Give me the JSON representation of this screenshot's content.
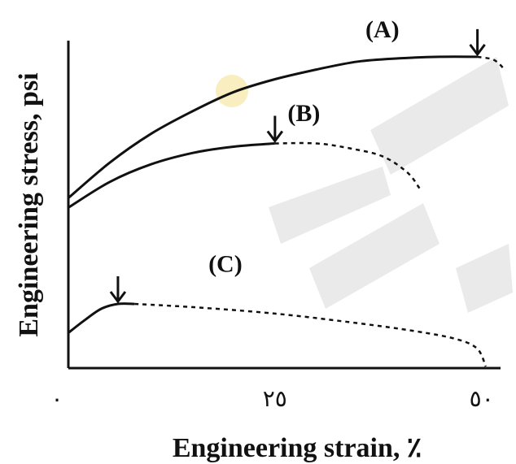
{
  "chart_data": {
    "type": "line",
    "xlabel": "Engineering strain, ٪",
    "ylabel": "Engineering stress,  psi",
    "xlim": [
      0,
      52
    ],
    "ylim": [
      0,
      100
    ],
    "x_ticks": [
      {
        "value": 0,
        "label": "٠"
      },
      {
        "value": 25,
        "label": "٢٥"
      },
      {
        "value": 50,
        "label": "٥٠"
      }
    ],
    "grid": false,
    "series": [
      {
        "name": "(A)",
        "solid": [
          [
            0,
            53
          ],
          [
            5,
            64
          ],
          [
            10,
            73
          ],
          [
            15,
            80
          ],
          [
            20,
            86
          ],
          [
            25,
            90
          ],
          [
            30,
            93
          ],
          [
            35,
            95.5
          ],
          [
            40,
            96.5
          ],
          [
            45,
            97
          ],
          [
            49.5,
            97
          ]
        ],
        "dashed": [
          [
            49.5,
            97
          ],
          [
            51.5,
            96
          ],
          [
            52.8,
            93
          ]
        ],
        "necking_point": [
          49.5,
          97
        ]
      },
      {
        "name": "(B)",
        "solid": [
          [
            0,
            50
          ],
          [
            5,
            58
          ],
          [
            10,
            63.5
          ],
          [
            15,
            67
          ],
          [
            20,
            69
          ],
          [
            25,
            70
          ]
        ],
        "dashed": [
          [
            25,
            70
          ],
          [
            30,
            70
          ],
          [
            34,
            68.5
          ],
          [
            38,
            66
          ],
          [
            41,
            61
          ],
          [
            42.5,
            56
          ]
        ],
        "necking_point": [
          25,
          70
        ]
      },
      {
        "name": "(C)",
        "solid": [
          [
            0,
            11
          ],
          [
            2,
            15
          ],
          [
            4,
            18.5
          ],
          [
            6,
            20
          ],
          [
            8,
            20
          ]
        ],
        "dashed": [
          [
            8,
            20
          ],
          [
            15,
            19
          ],
          [
            25,
            17
          ],
          [
            35,
            14
          ],
          [
            42,
            11.5
          ],
          [
            47,
            9
          ],
          [
            49.5,
            6
          ],
          [
            50.5,
            0.5
          ]
        ],
        "necking_point": [
          6,
          20
        ]
      }
    ]
  }
}
